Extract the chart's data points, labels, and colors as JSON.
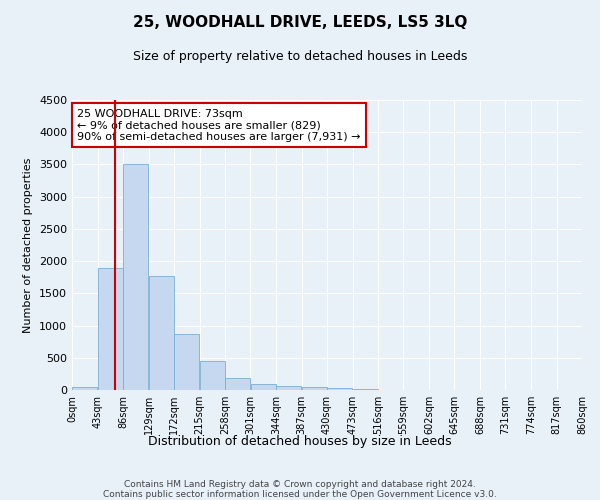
{
  "title": "25, WOODHALL DRIVE, LEEDS, LS5 3LQ",
  "subtitle": "Size of property relative to detached houses in Leeds",
  "xlabel": "Distribution of detached houses by size in Leeds",
  "ylabel": "Number of detached properties",
  "bar_color": "#c5d8f0",
  "bar_edge_color": "#7aafd4",
  "background_color": "#e8f0f8",
  "grid_color": "#ffffff",
  "annotation_box_color": "#cc0000",
  "annotation_text": "25 WOODHALL DRIVE: 73sqm\n← 9% of detached houses are smaller (829)\n90% of semi-detached houses are larger (7,931) →",
  "property_line_x": 73,
  "ylim": [
    0,
    4500
  ],
  "yticks": [
    0,
    500,
    1000,
    1500,
    2000,
    2500,
    3000,
    3500,
    4000,
    4500
  ],
  "bin_edges": [
    0,
    43,
    86,
    129,
    172,
    215,
    258,
    301,
    344,
    387,
    430,
    473,
    516,
    559,
    602,
    645,
    688,
    731,
    774,
    817,
    860
  ],
  "bin_labels": [
    "0sqm",
    "43sqm",
    "86sqm",
    "129sqm",
    "172sqm",
    "215sqm",
    "258sqm",
    "301sqm",
    "344sqm",
    "387sqm",
    "430sqm",
    "473sqm",
    "516sqm",
    "559sqm",
    "602sqm",
    "645sqm",
    "688sqm",
    "731sqm",
    "774sqm",
    "817sqm",
    "860sqm"
  ],
  "bar_heights": [
    50,
    1900,
    3500,
    1775,
    875,
    450,
    185,
    95,
    60,
    40,
    30,
    10,
    5,
    3,
    2,
    1,
    1,
    1,
    1,
    1
  ],
  "footer": "Contains HM Land Registry data © Crown copyright and database right 2024.\nContains public sector information licensed under the Open Government Licence v3.0."
}
